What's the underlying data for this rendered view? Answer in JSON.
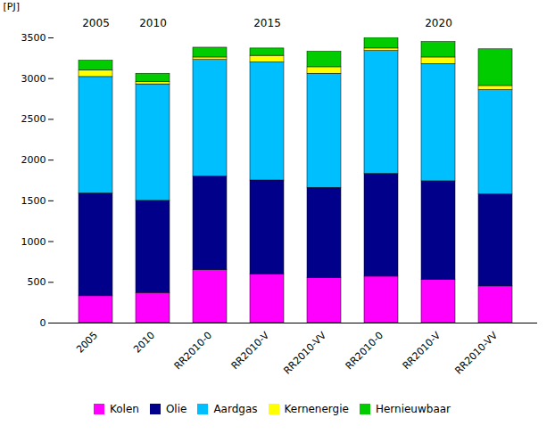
{
  "chart_data": {
    "type": "bar",
    "stacked": true,
    "categories": [
      "2005",
      "2010",
      "RR2010-0",
      "RR2010-V",
      "RR2010-VV",
      "RR2010-0",
      "RR2010-V",
      "RR2010-VV"
    ],
    "category_groups": [
      "2005",
      "2010",
      "2015",
      "2015",
      "2015",
      "2020",
      "2020",
      "2020"
    ],
    "series": [
      {
        "name": "Kolen",
        "color": "#FF00FF",
        "values": [
          330,
          370,
          650,
          600,
          550,
          570,
          530,
          450
        ]
      },
      {
        "name": "Olie",
        "color": "#00008B",
        "values": [
          1260,
          1130,
          1150,
          1150,
          1110,
          1260,
          1210,
          1130
        ]
      },
      {
        "name": "Aardgas",
        "color": "#00BFFF",
        "values": [
          1430,
          1430,
          1430,
          1450,
          1400,
          1510,
          1440,
          1280
        ]
      },
      {
        "name": "Kernenergie",
        "color": "#FFFF00",
        "values": [
          80,
          30,
          30,
          80,
          80,
          30,
          80,
          50
        ]
      },
      {
        "name": "Hernieuwbaar",
        "color": "#00CC00",
        "values": [
          120,
          100,
          120,
          90,
          190,
          130,
          190,
          450
        ]
      }
    ],
    "ylabel": "[PJ]",
    "ylim": [
      0,
      3500
    ],
    "yticks": [
      0,
      500,
      1000,
      1500,
      2000,
      2500,
      3000,
      3500
    ],
    "grid": false,
    "legend": "bottom"
  }
}
